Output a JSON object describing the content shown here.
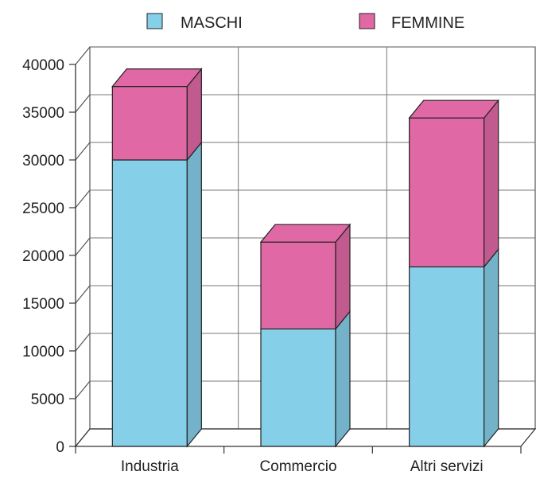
{
  "chart_data": {
    "type": "bar",
    "stacked": true,
    "three_d": true,
    "categories": [
      "Industria",
      "Commercio",
      "Altri servizi"
    ],
    "series": [
      {
        "name": "MASCHI",
        "values": [
          30000,
          12300,
          18800
        ],
        "color": "#86cfe9"
      },
      {
        "name": "FEMMINE",
        "values": [
          7700,
          9100,
          15600
        ],
        "color": "#e069a5"
      }
    ],
    "y_ticks": [
      "0",
      "5000",
      "10000",
      "15000",
      "20000",
      "25000",
      "30000",
      "35000",
      "40000"
    ],
    "ylim": [
      0,
      40000
    ],
    "grid": true,
    "legend_position": "top"
  }
}
